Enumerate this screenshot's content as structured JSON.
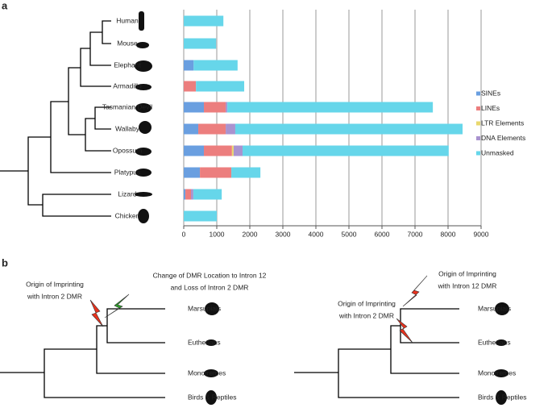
{
  "chart_data": {
    "type": "stacked-barh",
    "categories": [
      "Human",
      "Mouse",
      "Elephant",
      "Armadillo",
      "Tasmanian Devil",
      "Wallaby",
      "Opossum",
      "Platypus",
      "Lizard",
      "Chicken"
    ],
    "series": [
      {
        "name": "SINEs",
        "color": "#6a9fe0",
        "values": [
          0,
          0,
          300,
          0,
          610,
          440,
          610,
          490,
          50,
          0
        ]
      },
      {
        "name": "LINEs",
        "color": "#ec7e7e",
        "values": [
          0,
          0,
          0,
          370,
          660,
          830,
          850,
          950,
          170,
          0
        ]
      },
      {
        "name": "LTR Elements",
        "color": "#e9d86e",
        "values": [
          0,
          0,
          0,
          0,
          0,
          0,
          50,
          0,
          0,
          0
        ]
      },
      {
        "name": "DNA Elements",
        "color": "#a993cf",
        "values": [
          0,
          0,
          0,
          0,
          50,
          290,
          270,
          0,
          70,
          0
        ]
      },
      {
        "name": "Unmasked",
        "color": "#66d6ea",
        "values": [
          1200,
          980,
          1330,
          1460,
          6220,
          6880,
          6240,
          880,
          860,
          1000
        ]
      }
    ],
    "xlim": [
      0,
      9000
    ],
    "xticks": [
      0,
      1000,
      2000,
      3000,
      4000,
      5000,
      6000,
      7000,
      8000,
      9000
    ],
    "grid": true,
    "legend": "right"
  },
  "panel_labels": [
    "a",
    "b"
  ],
  "diagram": {
    "left": {
      "annotations": [
        [
          "Origin of Imprinting",
          "with Intron 2 DMR"
        ],
        [
          "Change of DMR Location to Intron 12",
          "and Loss of Intron 2 DMR"
        ]
      ],
      "leaves": [
        "Marsupials",
        "Eutherians",
        "Monotremes",
        "Birds & Reptiles"
      ]
    },
    "right": {
      "annotations": [
        [
          "Origin of Imprinting",
          "with Intron 12 DMR"
        ],
        [
          "Origin of Imprinting",
          "with Intron 2 DMR"
        ]
      ],
      "leaves": [
        "Marsupials",
        "Eutherians",
        "Monotremes",
        "Birds & Reptiles"
      ]
    }
  }
}
